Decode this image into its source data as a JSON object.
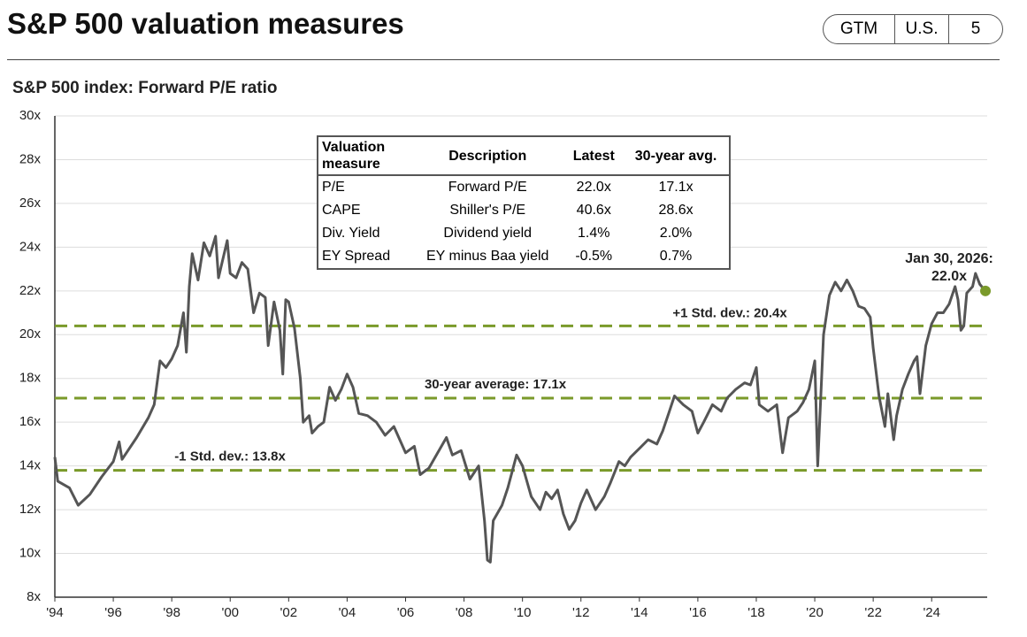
{
  "header": {
    "title": "S&P 500 valuation measures",
    "tags": [
      "GTM",
      "U.S.",
      "5"
    ]
  },
  "table": {
    "columns": [
      "Valuation measure",
      "Description",
      "Latest",
      "30-year avg."
    ],
    "rows": [
      [
        "P/E",
        "Forward P/E",
        "22.0x",
        "17.1x"
      ],
      [
        "CAPE",
        "Shiller's P/E",
        "40.6x",
        "28.6x"
      ],
      [
        "Div. Yield",
        "Dividend yield",
        "1.4%",
        "2.0%"
      ],
      [
        "EY Spread",
        "EY minus Baa yield",
        "-0.5%",
        "0.7%"
      ]
    ]
  },
  "chart_data": {
    "type": "line",
    "title": "S&P 500 index: Forward P/E ratio",
    "color": "#555555",
    "x": [
      1994.0,
      1994.1,
      1994.5,
      1994.8,
      1995.2,
      1995.6,
      1996.0,
      1996.2,
      1996.3,
      1996.8,
      1997.2,
      1997.4,
      1997.6,
      1997.8,
      1998.0,
      1998.2,
      1998.4,
      1998.5,
      1998.6,
      1998.7,
      1998.9,
      1999.1,
      1999.3,
      1999.5,
      1999.6,
      1999.9,
      2000.0,
      2000.2,
      2000.4,
      2000.6,
      2000.8,
      2001.0,
      2001.2,
      2001.3,
      2001.5,
      2001.7,
      2001.8,
      2001.9,
      2002.0,
      2002.2,
      2002.4,
      2002.5,
      2002.7,
      2002.8,
      2003.0,
      2003.2,
      2003.4,
      2003.6,
      2003.8,
      2004.0,
      2004.2,
      2004.4,
      2004.7,
      2005.0,
      2005.3,
      2005.6,
      2006.0,
      2006.3,
      2006.5,
      2006.8,
      2007.1,
      2007.4,
      2007.6,
      2007.9,
      2008.2,
      2008.5,
      2008.7,
      2008.8,
      2008.9,
      2009.0,
      2009.3,
      2009.5,
      2009.8,
      2010.0,
      2010.3,
      2010.6,
      2010.8,
      2011.0,
      2011.2,
      2011.4,
      2011.6,
      2011.8,
      2012.0,
      2012.2,
      2012.5,
      2012.8,
      2013.0,
      2013.3,
      2013.5,
      2013.7,
      2014.0,
      2014.3,
      2014.6,
      2014.8,
      2015.0,
      2015.2,
      2015.5,
      2015.8,
      2016.0,
      2016.2,
      2016.5,
      2016.8,
      2017.0,
      2017.3,
      2017.6,
      2017.8,
      2018.0,
      2018.1,
      2018.4,
      2018.7,
      2018.9,
      2019.1,
      2019.4,
      2019.6,
      2019.8,
      2020.0,
      2020.1,
      2020.3,
      2020.5,
      2020.7,
      2020.9,
      2021.1,
      2021.3,
      2021.5,
      2021.7,
      2021.9,
      2022.0,
      2022.2,
      2022.4,
      2022.5,
      2022.7,
      2022.8,
      2023.0,
      2023.2,
      2023.4,
      2023.5,
      2023.6,
      2023.8,
      2024.0,
      2024.2,
      2024.4,
      2024.6,
      2024.8,
      2024.9,
      2025.0,
      2025.1,
      2025.2,
      2025.4,
      2025.5,
      2025.65,
      2025.84
    ],
    "values": [
      14.4,
      13.3,
      13.0,
      12.2,
      12.7,
      13.5,
      14.2,
      15.1,
      14.3,
      15.3,
      16.2,
      16.8,
      18.8,
      18.5,
      18.9,
      19.5,
      21.0,
      19.2,
      22.2,
      23.7,
      22.5,
      24.2,
      23.6,
      24.5,
      22.6,
      24.3,
      22.8,
      22.6,
      23.3,
      23.0,
      21.0,
      21.9,
      21.7,
      19.5,
      21.5,
      20.2,
      18.2,
      21.6,
      21.5,
      20.3,
      18.0,
      16.0,
      16.3,
      15.5,
      15.8,
      16.0,
      17.6,
      17.0,
      17.5,
      18.2,
      17.6,
      16.4,
      16.3,
      16.0,
      15.4,
      15.8,
      14.6,
      14.9,
      13.6,
      13.9,
      14.6,
      15.3,
      14.5,
      14.7,
      13.4,
      14.0,
      11.5,
      9.7,
      9.6,
      11.5,
      12.2,
      13.0,
      14.5,
      14.0,
      12.6,
      12.0,
      12.8,
      12.5,
      12.9,
      11.8,
      11.1,
      11.5,
      12.3,
      12.9,
      12.0,
      12.6,
      13.2,
      14.2,
      14.0,
      14.4,
      14.8,
      15.2,
      15.0,
      15.6,
      16.4,
      17.2,
      16.8,
      16.5,
      15.5,
      16.0,
      16.8,
      16.5,
      17.1,
      17.5,
      17.8,
      17.7,
      18.5,
      16.8,
      16.5,
      16.8,
      14.6,
      16.2,
      16.5,
      16.9,
      17.5,
      18.8,
      14.0,
      20.0,
      21.8,
      22.4,
      22.0,
      22.5,
      22.0,
      21.3,
      21.2,
      20.8,
      19.4,
      17.2,
      15.8,
      17.3,
      15.2,
      16.3,
      17.5,
      18.2,
      18.8,
      19.0,
      17.3,
      19.5,
      20.5,
      21.0,
      21.0,
      21.4,
      22.2,
      21.6,
      20.2,
      20.4,
      21.9,
      22.2,
      22.8,
      22.3,
      22.0
    ],
    "xlim": [
      1994,
      2025.9
    ],
    "ylim": [
      8,
      30
    ],
    "xticks": [
      {
        "value": 1994,
        "label": "'94"
      },
      {
        "value": 1996,
        "label": "'96"
      },
      {
        "value": 1998,
        "label": "'98"
      },
      {
        "value": 2000,
        "label": "'00"
      },
      {
        "value": 2002,
        "label": "'02"
      },
      {
        "value": 2004,
        "label": "'04"
      },
      {
        "value": 2006,
        "label": "'06"
      },
      {
        "value": 2008,
        "label": "'08"
      },
      {
        "value": 2010,
        "label": "'10"
      },
      {
        "value": 2012,
        "label": "'12"
      },
      {
        "value": 2014,
        "label": "'14"
      },
      {
        "value": 2016,
        "label": "'16"
      },
      {
        "value": 2018,
        "label": "'18"
      },
      {
        "value": 2020,
        "label": "'20"
      },
      {
        "value": 2022,
        "label": "'22"
      },
      {
        "value": 2024,
        "label": "'24"
      }
    ],
    "yticks": [
      {
        "value": 8,
        "label": "8x"
      },
      {
        "value": 10,
        "label": "10x"
      },
      {
        "value": 12,
        "label": "12x"
      },
      {
        "value": 14,
        "label": "14x"
      },
      {
        "value": 16,
        "label": "16x"
      },
      {
        "value": 18,
        "label": "18x"
      },
      {
        "value": 20,
        "label": "20x"
      },
      {
        "value": 22,
        "label": "22x"
      },
      {
        "value": 24,
        "label": "24x"
      },
      {
        "value": 26,
        "label": "26x"
      },
      {
        "value": 28,
        "label": "28x"
      },
      {
        "value": 30,
        "label": "30x"
      }
    ],
    "grid": true,
    "hlines": [
      {
        "value": 20.4,
        "label": "+1 Std. dev.: 20.4x"
      },
      {
        "value": 17.1,
        "label": "30-year average: 17.1x"
      },
      {
        "value": 13.8,
        "label": "-1 Std. dev.: 13.8x"
      }
    ],
    "hline_color": "#7a9a2a",
    "annotation": {
      "lines": [
        "Jan 30, 2026:",
        "22.0x"
      ],
      "color": "#7a9a2a"
    }
  }
}
